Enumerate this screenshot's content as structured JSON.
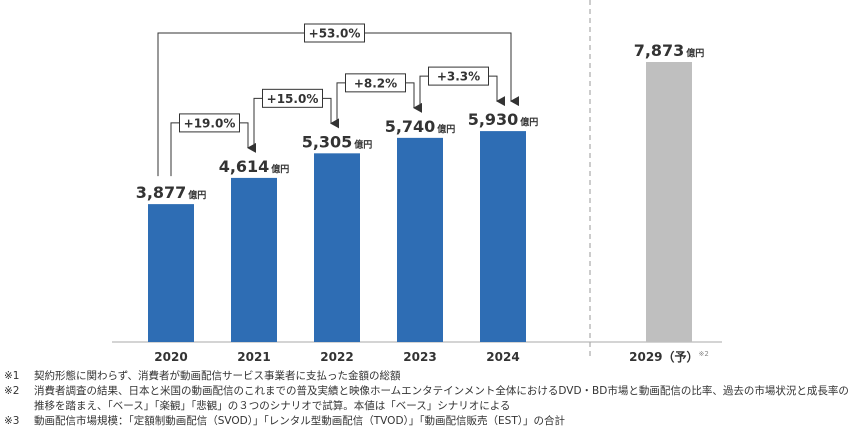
{
  "chart_data": {
    "type": "bar",
    "categories": [
      "2020",
      "2021",
      "2022",
      "2023",
      "2024",
      "2029（予）"
    ],
    "forecast_note": "※2",
    "values": [
      3877,
      4614,
      5305,
      5740,
      5930,
      7873
    ],
    "value_labels": [
      "3,877",
      "4,614",
      "5,305",
      "5,740",
      "5,930",
      "7,873"
    ],
    "unit": "億円",
    "colors": [
      "#2e6db4",
      "#2e6db4",
      "#2e6db4",
      "#2e6db4",
      "#2e6db4",
      "#bfbfbf"
    ],
    "growth_labels": [
      "+19.0%",
      "+15.0%",
      "+8.2%",
      "+3.3%"
    ],
    "total_growth_label": "+53.0%",
    "footnotes": [
      {
        "marker": "※1",
        "text": "契約形態に関わらず、消費者が動画配信サービス事業者に支払った金額の総額"
      },
      {
        "marker": "※2",
        "text": "消費者調査の結果、日本と米国の動画配信のこれまでの普及実績と映像ホームエンタテインメント全体におけるDVD・BD市場と動画配信の比率、過去の市場状況と成長率の推移を踏まえ、「ベース」「楽観」「悲観」の３つのシナリオで試算。本値は「ベース」シナリオによる"
      },
      {
        "marker": "※3",
        "text": "動画配信市場規模：「定額制動画配信（SVOD）」「レンタル型動画配信（TVOD）」「動画配信販売（EST）」の合計"
      }
    ]
  }
}
